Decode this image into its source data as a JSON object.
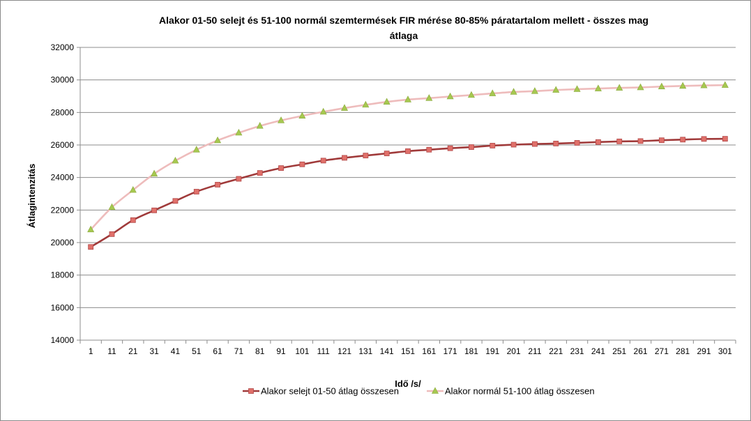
{
  "chart_data": {
    "type": "line",
    "title_line1": "Alakor 01-50 selejt és 51-100 normál szemtermések FIR mérése 80-85% páratartalom mellett - összes mag",
    "title_line2": "átlaga",
    "xlabel": "Idő /s/",
    "ylabel": "Átlagintenzitás",
    "ylim": [
      14000,
      32000
    ],
    "yticks": [
      "14000",
      "16000",
      "18000",
      "20000",
      "22000",
      "24000",
      "26000",
      "28000",
      "30000",
      "32000"
    ],
    "categories": [
      "1",
      "11",
      "21",
      "31",
      "41",
      "51",
      "61",
      "71",
      "81",
      "91",
      "101",
      "111",
      "121",
      "131",
      "141",
      "151",
      "161",
      "171",
      "181",
      "191",
      "201",
      "211",
      "221",
      "231",
      "241",
      "251",
      "261",
      "271",
      "281",
      "291",
      "301"
    ],
    "grid": "horizontal",
    "legend_position": "bottom",
    "series": [
      {
        "name": "Alakor selejt 01-50 átlag összesen",
        "color": "#a03a3a",
        "marker": "square",
        "marker_color": "#e0706a",
        "values": [
          19730,
          20520,
          21380,
          21980,
          22560,
          23130,
          23560,
          23920,
          24280,
          24580,
          24810,
          25040,
          25210,
          25350,
          25480,
          25620,
          25710,
          25800,
          25870,
          25960,
          26020,
          26060,
          26090,
          26130,
          26180,
          26220,
          26240,
          26290,
          26330,
          26370,
          26380
        ]
      },
      {
        "name": "Alakor normál 51-100 átlag összesen",
        "color": "#eebcbc",
        "marker": "triangle",
        "marker_color": "#a6c850",
        "values": [
          20800,
          22170,
          23230,
          24230,
          25030,
          25710,
          26280,
          26750,
          27170,
          27510,
          27790,
          28040,
          28270,
          28470,
          28650,
          28790,
          28880,
          28980,
          29070,
          29170,
          29260,
          29310,
          29380,
          29430,
          29470,
          29510,
          29540,
          29590,
          29630,
          29660,
          29680
        ]
      }
    ]
  }
}
